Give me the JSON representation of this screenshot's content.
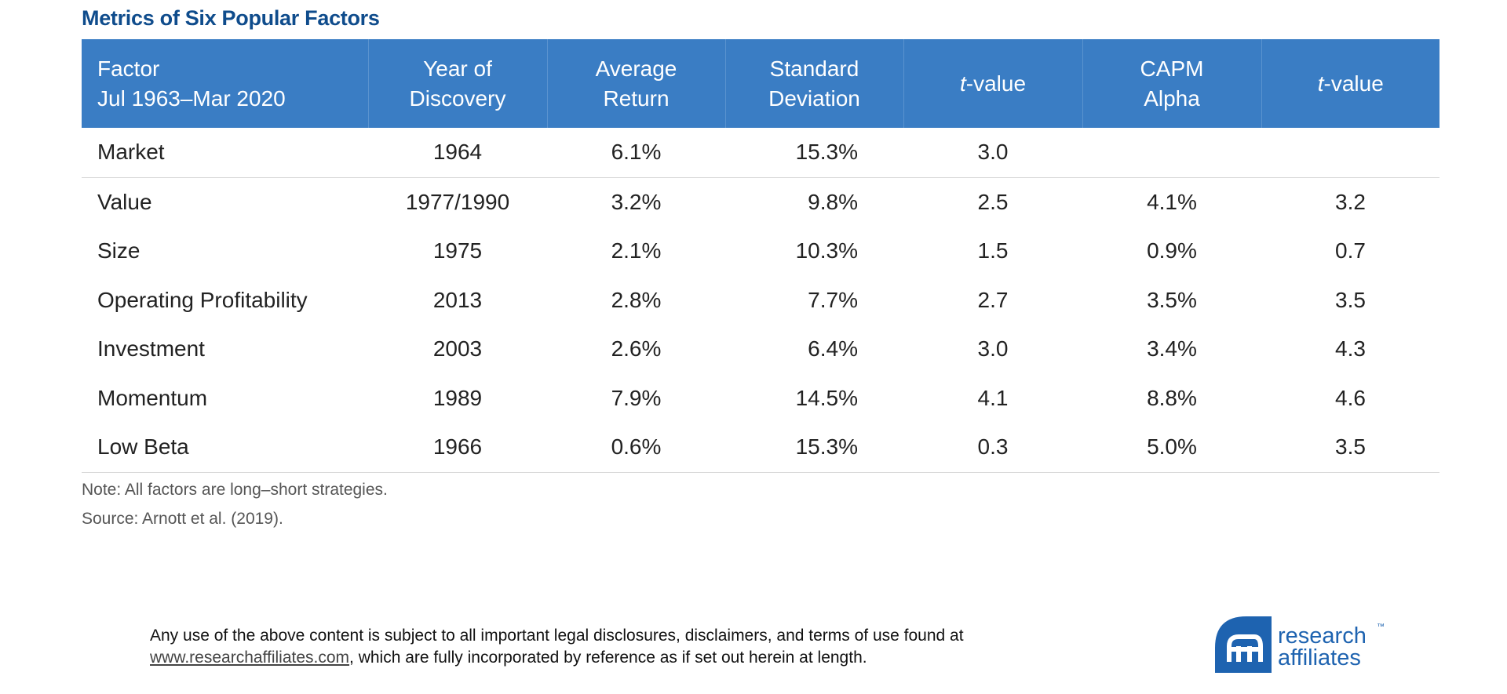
{
  "header": {
    "title": "Metrics of Six Popular Factors"
  },
  "table": {
    "columns": [
      {
        "lines": [
          "Factor",
          "Jul 1963–Mar 2020"
        ]
      },
      {
        "lines": [
          "Year of",
          "Discovery"
        ]
      },
      {
        "lines": [
          "Average",
          "Return"
        ]
      },
      {
        "lines": [
          "Standard",
          "Deviation"
        ]
      },
      {
        "italic": "t",
        "text": "-value"
      },
      {
        "lines": [
          "CAPM",
          "Alpha"
        ]
      },
      {
        "italic": "t",
        "text": "-value"
      }
    ],
    "rows": [
      [
        "Market",
        "1964",
        "6.1%",
        "15.3%",
        "3.0",
        null,
        null
      ],
      [
        "Value",
        "1977/1990",
        "3.2%",
        "9.8%",
        "2.5",
        "4.1%",
        "3.2"
      ],
      [
        "Size",
        "1975",
        "2.1%",
        "10.3%",
        "1.5",
        "0.9%",
        "0.7"
      ],
      [
        "Operating Profitability",
        "2013",
        "2.8%",
        "7.7%",
        "2.7",
        "3.5%",
        "3.5"
      ],
      [
        "Investment",
        "2003",
        "2.6%",
        "6.4%",
        "3.0",
        "3.4%",
        "4.3"
      ],
      [
        "Momentum",
        "1989",
        "7.9%",
        "14.5%",
        "4.1",
        "8.8%",
        "4.6"
      ],
      [
        "Low Beta",
        "1966",
        "0.6%",
        "15.3%",
        "0.3",
        "5.0%",
        "3.5"
      ]
    ]
  },
  "notes": [
    "Note: All factors are long–short strategies.",
    "Source: Arnott et al. (2019)."
  ],
  "footer": {
    "text_before": "Any use of the above content is subject to all important legal disclosures, disclaimers, and terms of use found at",
    "link": "www.researchaffiliates.com",
    "text_after": ", which are fully incorporated by reference as if set out herein at length."
  },
  "logo": {
    "line1": "research",
    "mark": "™",
    "line2": "affiliates"
  }
}
